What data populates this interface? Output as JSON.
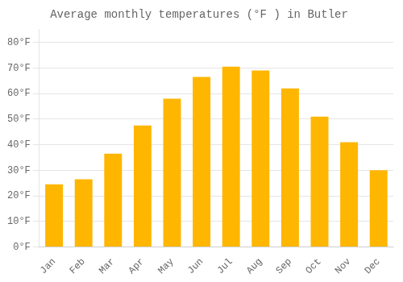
{
  "chart_data": {
    "type": "bar",
    "title": "Average monthly temperatures (°F ) in Butler",
    "categories": [
      "Jan",
      "Feb",
      "Mar",
      "Apr",
      "May",
      "Jun",
      "Jul",
      "Aug",
      "Sep",
      "Oct",
      "Nov",
      "Dec"
    ],
    "values": [
      24.5,
      26.5,
      36.5,
      47.5,
      58,
      66.5,
      70.5,
      69,
      62,
      51,
      41,
      30
    ],
    "color": "#FFB600",
    "ylim": [
      0,
      85
    ],
    "yticks": [
      {
        "value": 0,
        "label": "0°F"
      },
      {
        "value": 10,
        "label": "10°F"
      },
      {
        "value": 20,
        "label": "20°F"
      },
      {
        "value": 30,
        "label": "30°F"
      },
      {
        "value": 40,
        "label": "40°F"
      },
      {
        "value": 50,
        "label": "50°F"
      },
      {
        "value": 60,
        "label": "60°F"
      },
      {
        "value": 70,
        "label": "70°F"
      },
      {
        "value": 80,
        "label": "80°F"
      }
    ],
    "grid": "y"
  }
}
